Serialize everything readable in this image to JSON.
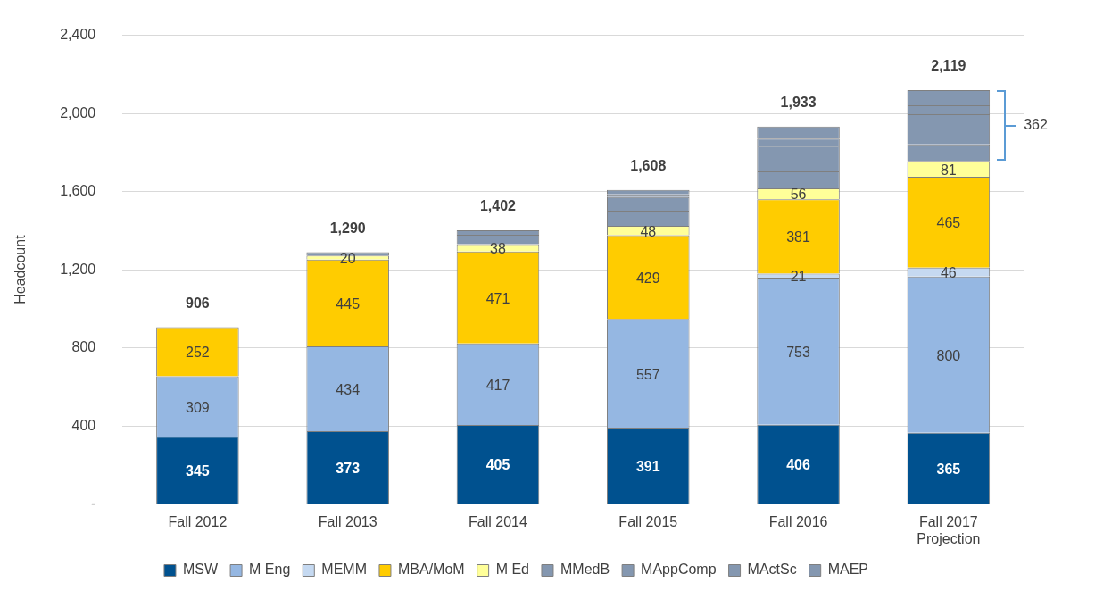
{
  "chart_data": {
    "type": "bar",
    "stacked": true,
    "ylabel": "Headcount",
    "categories": [
      "Fall 2012",
      "Fall 2013",
      "Fall 2014",
      "Fall 2015",
      "Fall 2016",
      "Fall 2017 Projection"
    ],
    "series": [
      {
        "name": "MSW",
        "color": "#00518f",
        "values": [
          345,
          373,
          405,
          391,
          406,
          365
        ],
        "value_labels": [
          "345",
          "373",
          "405",
          "391",
          "406",
          "365"
        ]
      },
      {
        "name": "M Eng",
        "color": "#95b7e2",
        "values": [
          309,
          434,
          417,
          557,
          753,
          800
        ],
        "value_labels": [
          "309",
          "434",
          "417",
          "557",
          "753",
          "800"
        ]
      },
      {
        "name": "MEMM",
        "color": "#c5d9f1",
        "values": [
          null,
          null,
          null,
          null,
          21,
          46
        ],
        "value_labels": [
          null,
          null,
          null,
          null,
          "21",
          "46"
        ]
      },
      {
        "name": "MBA/MoM",
        "color": "#ffcc00",
        "values": [
          252,
          445,
          471,
          429,
          381,
          465
        ],
        "value_labels": [
          "252",
          "445",
          "471",
          "429",
          "381",
          "465"
        ]
      },
      {
        "name": "M Ed",
        "color": "#ffff99",
        "values": [
          null,
          20,
          38,
          48,
          56,
          81
        ],
        "value_labels": [
          null,
          "20",
          "38",
          "48",
          "56",
          "81"
        ]
      },
      {
        "name": "MMedB",
        "color": "#8497b0",
        "values": [
          null,
          18,
          48,
          77,
          86,
          85
        ]
      },
      {
        "name": "MAppComp",
        "color": "#8497b0",
        "values": [
          null,
          null,
          23,
          70,
          131,
          154
        ]
      },
      {
        "name": "MActSc",
        "color": "#8497b0",
        "values": [
          null,
          null,
          null,
          14,
          37,
          46
        ]
      },
      {
        "name": "MAEP",
        "color": "#8497b0",
        "values": [
          null,
          null,
          null,
          22,
          62,
          77
        ]
      }
    ],
    "totals": [
      "906",
      "1,290",
      "1,402",
      "1,608",
      "1,933",
      "2,119"
    ],
    "annotations": [
      "362"
    ],
    "ylim": [
      0,
      2400
    ],
    "yticks": [
      {
        "value": 0,
        "label": "-"
      },
      {
        "value": 400,
        "label": "400"
      },
      {
        "value": 800,
        "label": "800"
      },
      {
        "value": 1200,
        "label": "1,200"
      },
      {
        "value": 1600,
        "label": "1,600"
      },
      {
        "value": 2000,
        "label": "2,000"
      },
      {
        "value": 2400,
        "label": "2,400"
      }
    ],
    "grid": "y",
    "legend": "bottom"
  }
}
